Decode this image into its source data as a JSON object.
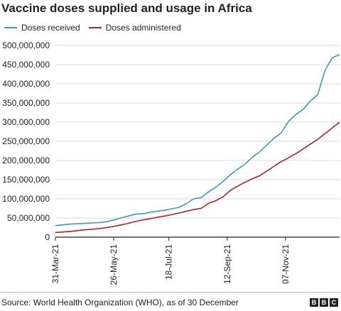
{
  "header": {
    "title": "Vaccine doses supplied and usage in Africa"
  },
  "footer": {
    "source": "Source: World Health Organization (WHO), as of 30 December"
  },
  "logo": {
    "letters": [
      "B",
      "B",
      "C"
    ]
  },
  "colors": {
    "received": "#3a9bb5",
    "administered": "#b41f24",
    "grid": "#d9d9d9",
    "axis": "#222222"
  },
  "chart_data": {
    "type": "line",
    "title": "Vaccine doses supplied and usage in Africa",
    "xlabel": "",
    "ylabel": "",
    "ylim": [
      0,
      500000000
    ],
    "yticks": [
      0,
      50000000,
      100000000,
      150000000,
      200000000,
      250000000,
      300000000,
      350000000,
      400000000,
      450000000,
      500000000
    ],
    "ytick_labels": [
      "0",
      "50,000,000",
      "100,000,000",
      "150,000,000",
      "200,000,000",
      "250,000,000",
      "300,000,000",
      "350,000,000",
      "400,000,000",
      "450,000,000",
      "500,000,000"
    ],
    "x": [
      "2021-03-31",
      "2021-04-07",
      "2021-04-14",
      "2021-04-21",
      "2021-04-28",
      "2021-05-05",
      "2021-05-12",
      "2021-05-19",
      "2021-05-26",
      "2021-06-02",
      "2021-06-09",
      "2021-06-16",
      "2021-06-23",
      "2021-06-30",
      "2021-07-07",
      "2021-07-14",
      "2021-07-21",
      "2021-07-28",
      "2021-08-04",
      "2021-08-11",
      "2021-08-18",
      "2021-08-25",
      "2021-09-01",
      "2021-09-08",
      "2021-09-15",
      "2021-09-22",
      "2021-09-29",
      "2021-10-06",
      "2021-10-13",
      "2021-10-20",
      "2021-10-27",
      "2021-11-03",
      "2021-11-10",
      "2021-11-17",
      "2021-11-24",
      "2021-12-01",
      "2021-12-08",
      "2021-12-15",
      "2021-12-22",
      "2021-12-29"
    ],
    "xticks": [
      "2021-03-31",
      "2021-05-26",
      "2021-07-18",
      "2021-09-12",
      "2021-11-07"
    ],
    "xtick_labels": [
      "31-Mar-21",
      "26-May-21",
      "18-Jul-21",
      "12-Sep-21",
      "07-Nov-21"
    ],
    "series": [
      {
        "name": "Doses received",
        "values": [
          30000000,
          32000000,
          34000000,
          35000000,
          36000000,
          37000000,
          38000000,
          40000000,
          45000000,
          50000000,
          55000000,
          60000000,
          61000000,
          65000000,
          68000000,
          70000000,
          74000000,
          78000000,
          88000000,
          100000000,
          103000000,
          118000000,
          130000000,
          145000000,
          163000000,
          177000000,
          190000000,
          208000000,
          222000000,
          240000000,
          258000000,
          272000000,
          302000000,
          320000000,
          333000000,
          355000000,
          372000000,
          435000000,
          468000000,
          476000000
        ]
      },
      {
        "name": "Doses administered",
        "values": [
          12000000,
          13500000,
          15000000,
          17000000,
          19000000,
          20500000,
          22500000,
          25000000,
          28000000,
          32000000,
          36000000,
          41000000,
          45000000,
          48000000,
          52000000,
          55000000,
          59000000,
          63000000,
          68000000,
          72000000,
          75000000,
          88000000,
          95000000,
          105000000,
          122000000,
          133000000,
          143000000,
          152000000,
          160000000,
          172000000,
          185000000,
          197000000,
          207000000,
          218000000,
          230000000,
          243000000,
          255000000,
          270000000,
          285000000,
          300000000
        ]
      }
    ],
    "grid": true,
    "legend": "top-left"
  }
}
